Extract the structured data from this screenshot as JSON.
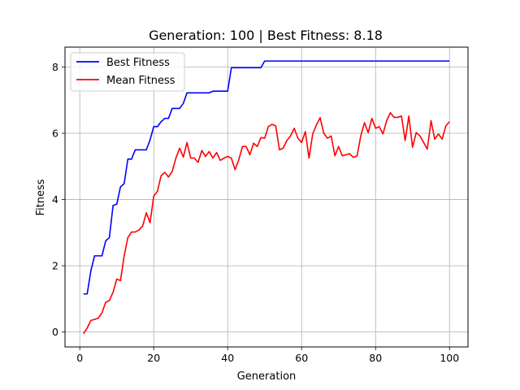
{
  "chart_data": {
    "type": "line",
    "title": "Generation: 100 | Best Fitness: 8.18",
    "xlabel": "Generation",
    "ylabel": "Fitness",
    "xlim": [
      -4,
      105
    ],
    "ylim": [
      -0.45,
      8.6
    ],
    "xticks": [
      0,
      20,
      40,
      60,
      80,
      100
    ],
    "yticks": [
      0,
      2,
      4,
      6,
      8
    ],
    "grid": true,
    "legend_position": "top-left",
    "x": [
      1,
      2,
      3,
      4,
      5,
      6,
      7,
      8,
      9,
      10,
      11,
      12,
      13,
      14,
      15,
      16,
      17,
      18,
      19,
      20,
      21,
      22,
      23,
      24,
      25,
      26,
      27,
      28,
      29,
      30,
      31,
      32,
      33,
      34,
      35,
      36,
      37,
      38,
      39,
      40,
      41,
      42,
      43,
      44,
      45,
      46,
      47,
      48,
      49,
      50,
      51,
      52,
      53,
      54,
      55,
      56,
      57,
      58,
      59,
      60,
      61,
      62,
      63,
      64,
      65,
      66,
      67,
      68,
      69,
      70,
      71,
      72,
      73,
      74,
      75,
      76,
      77,
      78,
      79,
      80,
      81,
      82,
      83,
      84,
      85,
      86,
      87,
      88,
      89,
      90,
      91,
      92,
      93,
      94,
      95,
      96,
      97,
      98,
      99,
      100
    ],
    "series": [
      {
        "name": "Best Fitness",
        "color": "#0000ff",
        "values": [
          1.15,
          1.15,
          1.85,
          2.3,
          2.3,
          2.3,
          2.75,
          2.85,
          3.82,
          3.86,
          4.38,
          4.48,
          5.22,
          5.22,
          5.5,
          5.5,
          5.5,
          5.5,
          5.8,
          6.2,
          6.2,
          6.35,
          6.45,
          6.45,
          6.75,
          6.75,
          6.75,
          6.9,
          7.22,
          7.22,
          7.22,
          7.22,
          7.22,
          7.22,
          7.22,
          7.27,
          7.27,
          7.27,
          7.27,
          7.27,
          7.98,
          7.98,
          7.98,
          7.98,
          7.98,
          7.98,
          7.98,
          7.98,
          7.98,
          8.18,
          8.18,
          8.18,
          8.18,
          8.18,
          8.18,
          8.18,
          8.18,
          8.18,
          8.18,
          8.18,
          8.18,
          8.18,
          8.18,
          8.18,
          8.18,
          8.18,
          8.18,
          8.18,
          8.18,
          8.18,
          8.18,
          8.18,
          8.18,
          8.18,
          8.18,
          8.18,
          8.18,
          8.18,
          8.18,
          8.18,
          8.18,
          8.18,
          8.18,
          8.18,
          8.18,
          8.18,
          8.18,
          8.18,
          8.18,
          8.18,
          8.18,
          8.18,
          8.18,
          8.18,
          8.18,
          8.18,
          8.18,
          8.18,
          8.18,
          8.18
        ]
      },
      {
        "name": "Mean Fitness",
        "color": "#ff0000",
        "values": [
          -0.05,
          0.12,
          0.35,
          0.38,
          0.42,
          0.58,
          0.9,
          0.95,
          1.2,
          1.6,
          1.55,
          2.3,
          2.85,
          3.02,
          3.02,
          3.08,
          3.2,
          3.6,
          3.3,
          4.1,
          4.25,
          4.72,
          4.82,
          4.68,
          4.85,
          5.25,
          5.55,
          5.28,
          5.72,
          5.25,
          5.25,
          5.12,
          5.48,
          5.3,
          5.45,
          5.25,
          5.42,
          5.18,
          5.25,
          5.3,
          5.25,
          4.9,
          5.2,
          5.6,
          5.6,
          5.35,
          5.7,
          5.6,
          5.87,
          5.85,
          6.2,
          6.27,
          6.22,
          5.5,
          5.55,
          5.78,
          5.92,
          6.15,
          5.85,
          5.72,
          6.05,
          5.25,
          5.98,
          6.25,
          6.47,
          6.0,
          5.85,
          5.92,
          5.32,
          5.6,
          5.32,
          5.35,
          5.38,
          5.27,
          5.32,
          5.92,
          6.32,
          6.02,
          6.45,
          6.15,
          6.2,
          5.98,
          6.38,
          6.62,
          6.48,
          6.48,
          6.52,
          5.78,
          6.52,
          5.58,
          6.02,
          5.92,
          5.72,
          5.52,
          6.38,
          5.82,
          5.98,
          5.82,
          6.22,
          6.35
        ]
      }
    ]
  }
}
